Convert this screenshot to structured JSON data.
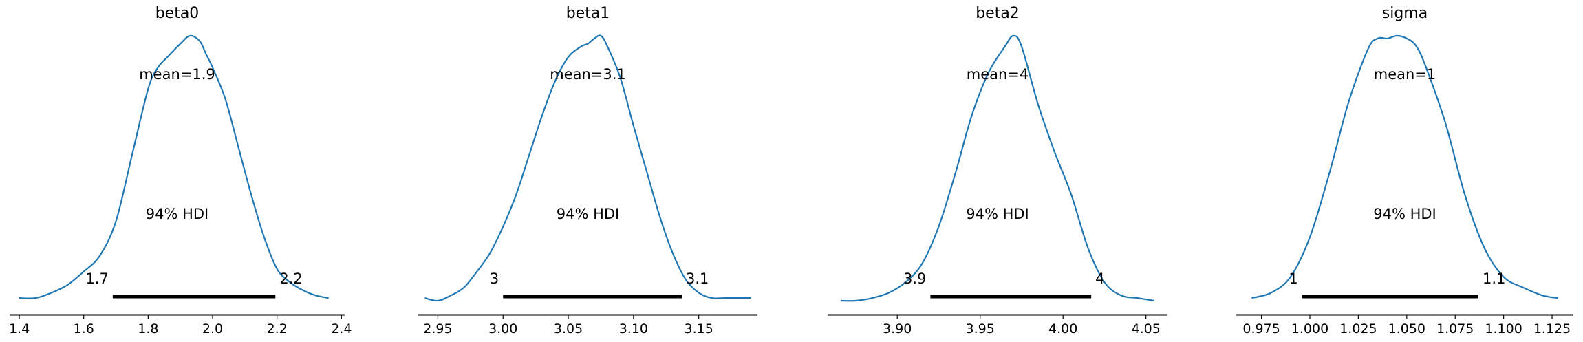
{
  "chart_data": [
    {
      "type": "line",
      "title": "beta0",
      "xlim": [
        1.37,
        2.41
      ],
      "ticks": [
        1.4,
        1.6,
        1.8,
        2.0,
        2.2,
        2.4
      ],
      "tick_labels": [
        "1.4",
        "1.6",
        "1.8",
        "2.0",
        "2.2",
        "2.4"
      ],
      "mean_label": "mean=1.9",
      "hdi_label": "94% HDI",
      "hdi": [
        1.69,
        2.195
      ],
      "hdi_low_label": "1.7",
      "hdi_high_label": "2.2",
      "density": {
        "x": [
          1.4,
          1.45,
          1.5,
          1.55,
          1.6,
          1.65,
          1.7,
          1.75,
          1.8,
          1.83,
          1.86,
          1.9,
          1.93,
          1.96,
          1.98,
          2.0,
          2.04,
          2.08,
          2.12,
          2.16,
          2.2,
          2.24,
          2.28,
          2.32,
          2.36
        ],
        "y": [
          0.01,
          0.01,
          0.03,
          0.06,
          0.11,
          0.17,
          0.3,
          0.55,
          0.8,
          0.88,
          0.92,
          0.97,
          1.0,
          0.98,
          0.93,
          0.88,
          0.76,
          0.58,
          0.4,
          0.24,
          0.12,
          0.07,
          0.04,
          0.02,
          0.01
        ]
      }
    },
    {
      "type": "line",
      "title": "beta1",
      "xlim": [
        2.935,
        3.195
      ],
      "ticks": [
        2.95,
        3.0,
        3.05,
        3.1,
        3.15
      ],
      "tick_labels": [
        "2.95",
        "3.00",
        "3.05",
        "3.10",
        "3.15"
      ],
      "mean_label": "mean=3.1",
      "hdi_label": "94% HDI",
      "hdi": [
        3.0,
        3.137
      ],
      "hdi_low_label": "3",
      "hdi_high_label": "3.1",
      "density": {
        "x": [
          2.94,
          2.95,
          2.96,
          2.97,
          2.98,
          2.99,
          3.0,
          3.01,
          3.02,
          3.03,
          3.04,
          3.05,
          3.06,
          3.065,
          3.07,
          3.075,
          3.08,
          3.09,
          3.1,
          3.11,
          3.12,
          3.13,
          3.14,
          3.15,
          3.16,
          3.17,
          3.18,
          3.19
        ],
        "y": [
          0.01,
          0.0,
          0.02,
          0.05,
          0.11,
          0.18,
          0.28,
          0.4,
          0.55,
          0.7,
          0.83,
          0.92,
          0.96,
          0.97,
          0.99,
          1.0,
          0.96,
          0.84,
          0.66,
          0.49,
          0.32,
          0.18,
          0.08,
          0.03,
          0.01,
          0.01,
          0.01,
          0.01
        ]
      }
    },
    {
      "type": "line",
      "title": "beta2",
      "xlim": [
        3.858,
        4.063
      ],
      "ticks": [
        3.9,
        3.95,
        4.0,
        4.05
      ],
      "tick_labels": [
        "3.90",
        "3.95",
        "4.00",
        "4.05"
      ],
      "mean_label": "mean=4",
      "hdi_label": "94% HDI",
      "hdi": [
        3.92,
        4.017
      ],
      "hdi_low_label": "3.9",
      "hdi_high_label": "4",
      "density": {
        "x": [
          3.866,
          3.875,
          3.885,
          3.895,
          3.905,
          3.915,
          3.925,
          3.935,
          3.945,
          3.955,
          3.965,
          3.97,
          3.975,
          3.985,
          3.995,
          4.005,
          4.015,
          4.025,
          4.035,
          4.045,
          4.055
        ],
        "y": [
          0.0,
          0.0,
          0.01,
          0.03,
          0.07,
          0.14,
          0.28,
          0.48,
          0.7,
          0.86,
          0.96,
          1.0,
          0.96,
          0.74,
          0.56,
          0.4,
          0.2,
          0.07,
          0.02,
          0.01,
          0.0
        ]
      }
    },
    {
      "type": "line",
      "title": "sigma",
      "xlim": [
        0.962,
        1.136
      ],
      "ticks": [
        0.975,
        1.0,
        1.025,
        1.05,
        1.075,
        1.1,
        1.125
      ],
      "tick_labels": [
        "0.975",
        "1.000",
        "1.025",
        "1.050",
        "1.075",
        "1.100",
        "1.125"
      ],
      "mean_label": "mean=1",
      "hdi_label": "94% HDI",
      "hdi": [
        0.996,
        1.087
      ],
      "hdi_low_label": "1",
      "hdi_high_label": "1.1",
      "density": {
        "x": [
          0.97,
          0.98,
          0.99,
          1.0,
          1.01,
          1.02,
          1.03,
          1.035,
          1.04,
          1.045,
          1.05,
          1.055,
          1.06,
          1.07,
          1.08,
          1.09,
          1.1,
          1.11,
          1.12,
          1.128
        ],
        "y": [
          0.01,
          0.03,
          0.09,
          0.24,
          0.48,
          0.75,
          0.95,
          0.99,
          0.99,
          1.0,
          0.99,
          0.96,
          0.88,
          0.67,
          0.4,
          0.2,
          0.09,
          0.05,
          0.02,
          0.01
        ]
      }
    }
  ]
}
